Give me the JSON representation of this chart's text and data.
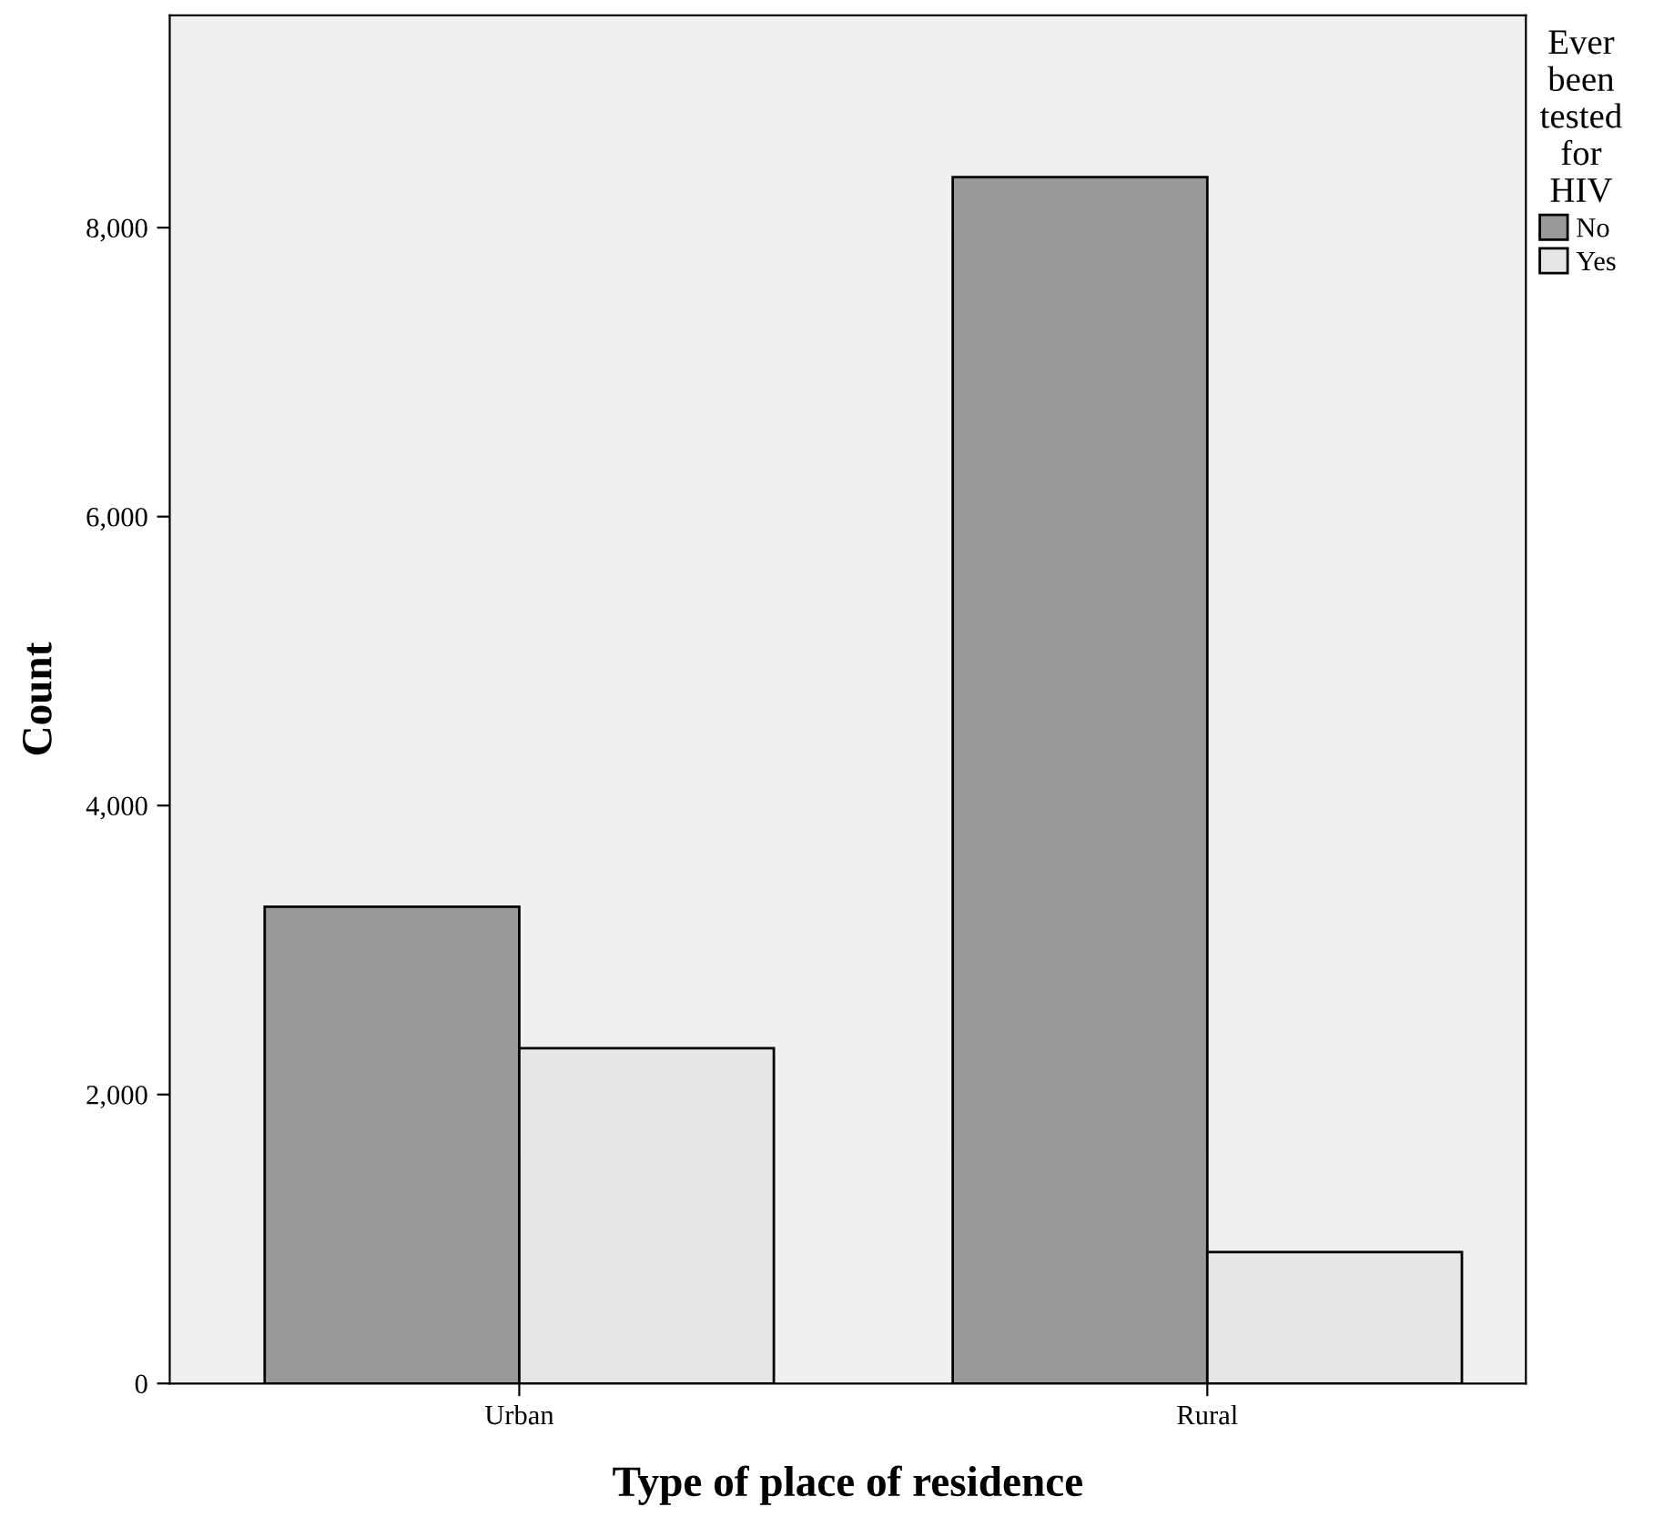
{
  "chart_data": {
    "type": "bar",
    "xlabel": "Type of place of residence",
    "ylabel": "Count",
    "legend_title": "Ever\nbeen\ntested\nfor\nHIV",
    "categories": [
      "Urban",
      "Rural"
    ],
    "series": [
      {
        "name": "No",
        "color": "#999999",
        "values": [
          3300,
          8350
        ]
      },
      {
        "name": "Yes",
        "color": "#e6e6e6",
        "values": [
          2320,
          910
        ]
      }
    ],
    "ylim": [
      0,
      9470
    ],
    "yticks": [
      {
        "value": 0,
        "label": "0"
      },
      {
        "value": 2000,
        "label": "2,000"
      },
      {
        "value": 4000,
        "label": "4,000"
      },
      {
        "value": 6000,
        "label": "6,000"
      },
      {
        "value": 8000,
        "label": "8,000"
      }
    ],
    "grid": false,
    "legend": "top right"
  }
}
